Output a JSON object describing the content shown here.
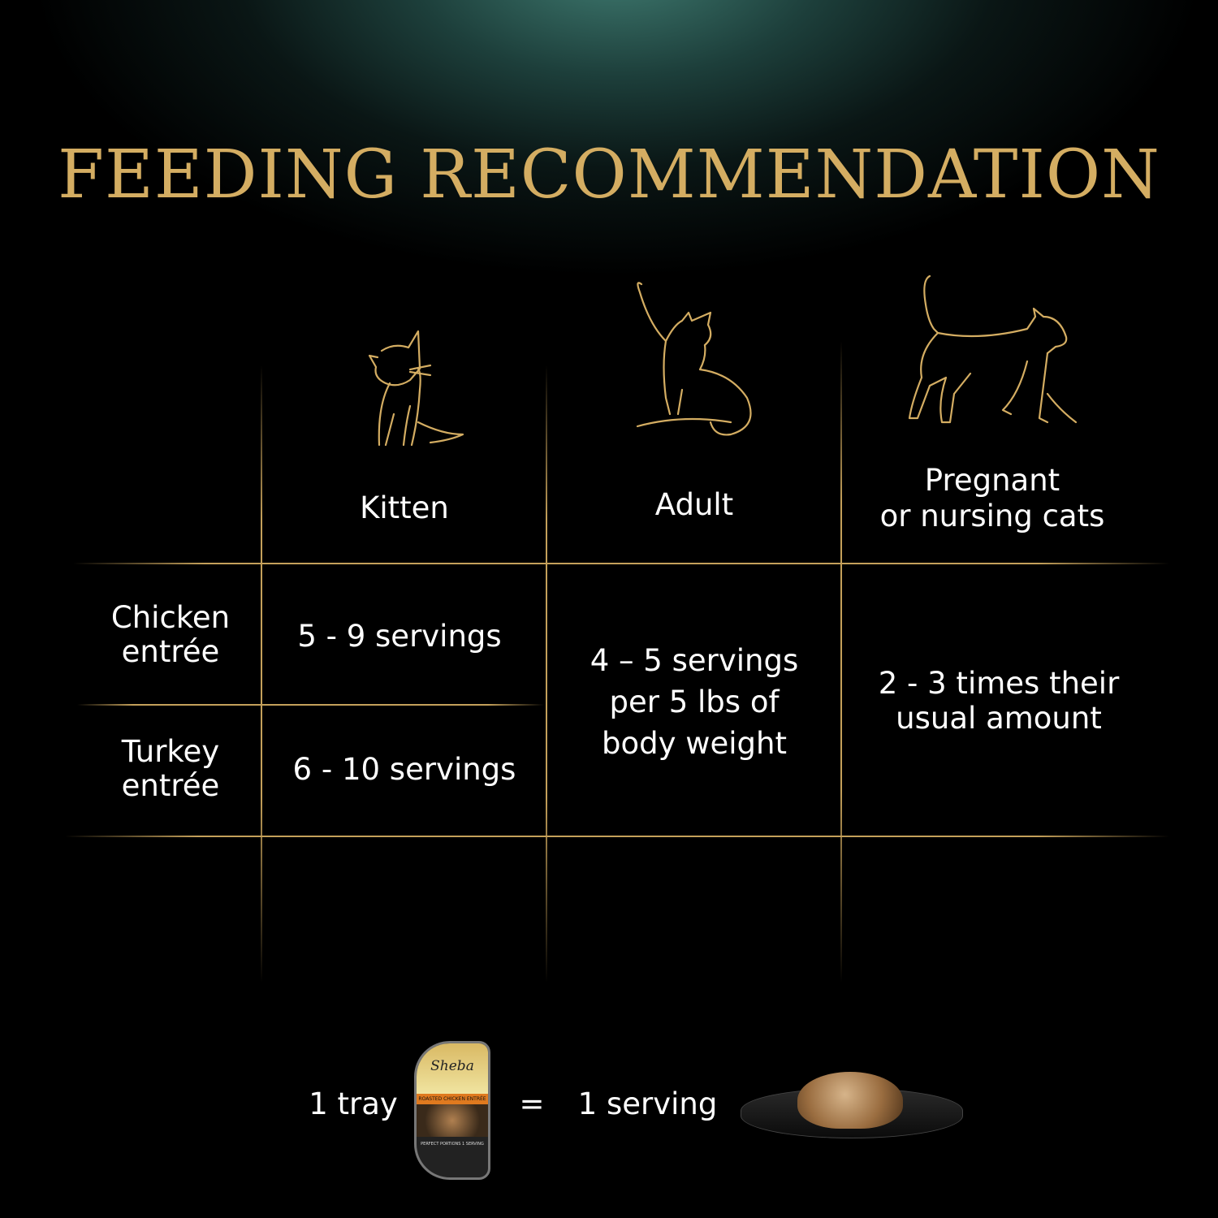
{
  "title": "FEEDING RECOMMENDATION",
  "columns": [
    {
      "label": "Kitten",
      "icon": "kitten-icon"
    },
    {
      "label": "Adult",
      "icon": "adult-cat-icon"
    },
    {
      "label": "Pregnant\nor nursing cats",
      "label_line1": "Pregnant",
      "label_line2": "or nursing cats",
      "icon": "walking-cat-icon"
    }
  ],
  "rows": [
    {
      "label_line1": "Chicken",
      "label_line2": "entrée",
      "kitten": "5 - 9 servings"
    },
    {
      "label_line1": "Turkey",
      "label_line2": "entrée",
      "kitten": "6 - 10  servings"
    }
  ],
  "adult_value": [
    "4 – 5 servings",
    "per 5 lbs of",
    "body weight"
  ],
  "pregnant_value": [
    "2 - 3 times their",
    "usual amount"
  ],
  "footer": {
    "left": "1 tray",
    "equals": "=",
    "right": "1 serving"
  },
  "tray": {
    "brand": "Sheba",
    "flavor": "ROASTED CHICKEN ENTRÉE",
    "tagline": "PERFECT PORTIONS 1 SERVING"
  },
  "colors": {
    "gold": "#d4ad62",
    "background": "#000000",
    "glow": "#3f7a70"
  }
}
